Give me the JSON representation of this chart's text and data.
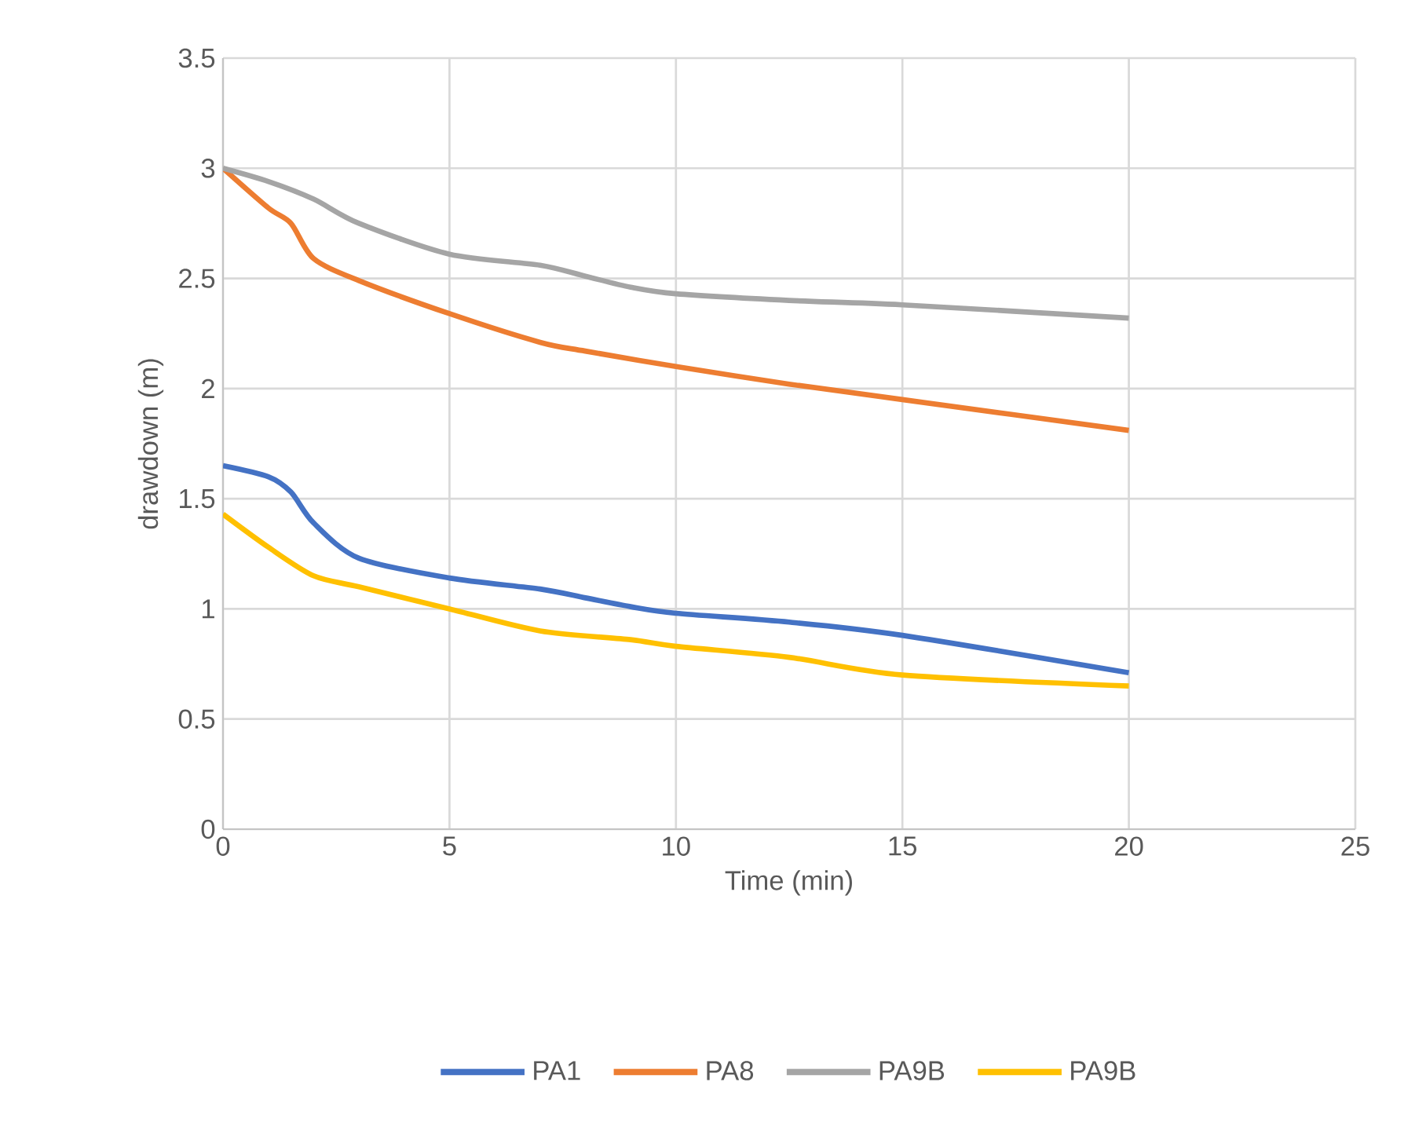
{
  "chart_data": {
    "type": "line",
    "xlabel": "Time (min)",
    "ylabel": "drawdown (m)",
    "xlim": [
      0,
      25
    ],
    "xticks": [
      0,
      5,
      10,
      15,
      20,
      25
    ],
    "ylim": [
      0,
      3.5
    ],
    "yticks": [
      0,
      0.5,
      1,
      1.5,
      2,
      2.5,
      3,
      3.5
    ],
    "grid": true,
    "legend": "bottom",
    "marker": "none",
    "line_style": "solid",
    "series": [
      {
        "name": "PA1",
        "color": "#4472c4",
        "x": [
          0,
          1,
          1.5,
          2,
          3,
          5,
          7,
          8,
          9,
          10,
          12.5,
          15,
          20
        ],
        "values": [
          1.65,
          1.6,
          1.53,
          1.39,
          1.23,
          1.14,
          1.09,
          1.05,
          1.01,
          0.98,
          0.94,
          0.88,
          0.71
        ]
      },
      {
        "name": "PA8",
        "color": "#ed7d31",
        "x": [
          0,
          1,
          1.5,
          2,
          3,
          5,
          7,
          8,
          10,
          12.5,
          15,
          20
        ],
        "values": [
          3.0,
          2.82,
          2.75,
          2.59,
          2.49,
          2.34,
          2.21,
          2.17,
          2.1,
          2.02,
          1.95,
          1.81
        ]
      },
      {
        "name": "PA9B",
        "color": "#a5a5a5",
        "x": [
          0,
          1,
          2,
          3,
          5,
          7,
          8,
          9,
          10,
          12.5,
          15,
          20
        ],
        "values": [
          3.0,
          2.94,
          2.86,
          2.75,
          2.61,
          2.56,
          2.51,
          2.46,
          2.43,
          2.4,
          2.38,
          2.32
        ]
      },
      {
        "name": "PA9B",
        "color": "#ffc000",
        "x": [
          0,
          1,
          2,
          3,
          5,
          7,
          9,
          10,
          12.5,
          15,
          20
        ],
        "values": [
          1.43,
          1.28,
          1.15,
          1.1,
          1.0,
          0.9,
          0.86,
          0.83,
          0.78,
          0.7,
          0.65
        ]
      }
    ]
  }
}
